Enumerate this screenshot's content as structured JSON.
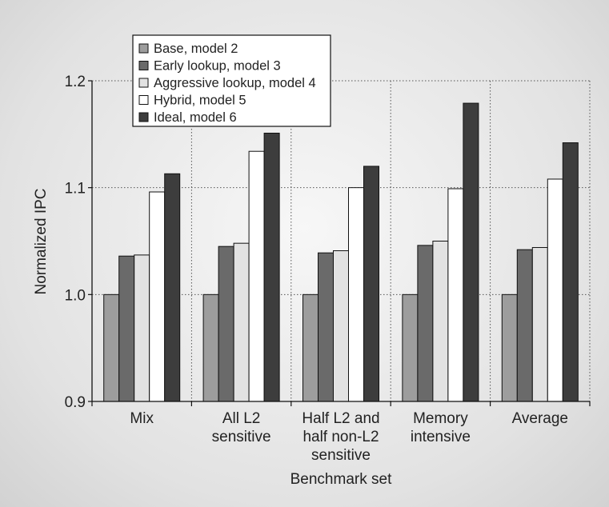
{
  "chart_data": {
    "type": "bar",
    "xlabel": "Benchmark set",
    "ylabel": "Normalized IPC",
    "ylim": [
      0.9,
      1.2
    ],
    "yticks": [
      "0.9",
      "1.0",
      "1.1",
      "1.2"
    ],
    "grid": true,
    "legend_position": "top-left",
    "categories": [
      [
        "Mix"
      ],
      [
        "All L2",
        "sensitive"
      ],
      [
        "Half L2 and",
        "half non-L2",
        "sensitive"
      ],
      [
        "Memory",
        "intensive"
      ],
      [
        "Average"
      ]
    ],
    "series": [
      {
        "name": "Base, model 2",
        "color": "#9d9d9d",
        "values": [
          1.0,
          1.0,
          1.0,
          1.0,
          1.0
        ]
      },
      {
        "name": "Early lookup, model 3",
        "color": "#6a6a6a",
        "values": [
          1.036,
          1.045,
          1.039,
          1.046,
          1.042
        ]
      },
      {
        "name": "Aggressive lookup, model 4",
        "color": "#e2e2e2",
        "values": [
          1.037,
          1.048,
          1.041,
          1.05,
          1.044
        ]
      },
      {
        "name": "Hybrid, model 5",
        "color": "#ffffff",
        "values": [
          1.096,
          1.134,
          1.1,
          1.099,
          1.108
        ]
      },
      {
        "name": "Ideal, model 6",
        "color": "#3d3d3d",
        "values": [
          1.113,
          1.151,
          1.12,
          1.179,
          1.142
        ]
      }
    ]
  }
}
